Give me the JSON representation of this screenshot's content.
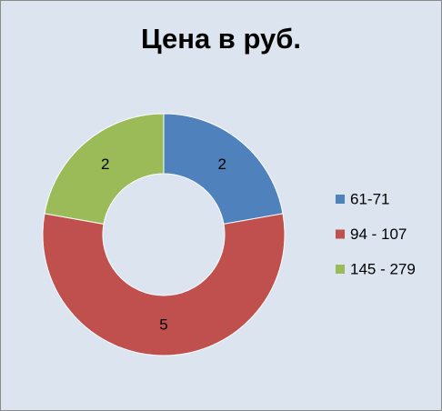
{
  "chart_data": {
    "type": "donut",
    "title": "Цена в руб.",
    "categories": [
      "61-71",
      "94 - 107",
      "145 - 279"
    ],
    "values": [
      2,
      5,
      2
    ],
    "colors": [
      "#4f81bd",
      "#c0504d",
      "#9bbb59"
    ],
    "legend": "right"
  }
}
